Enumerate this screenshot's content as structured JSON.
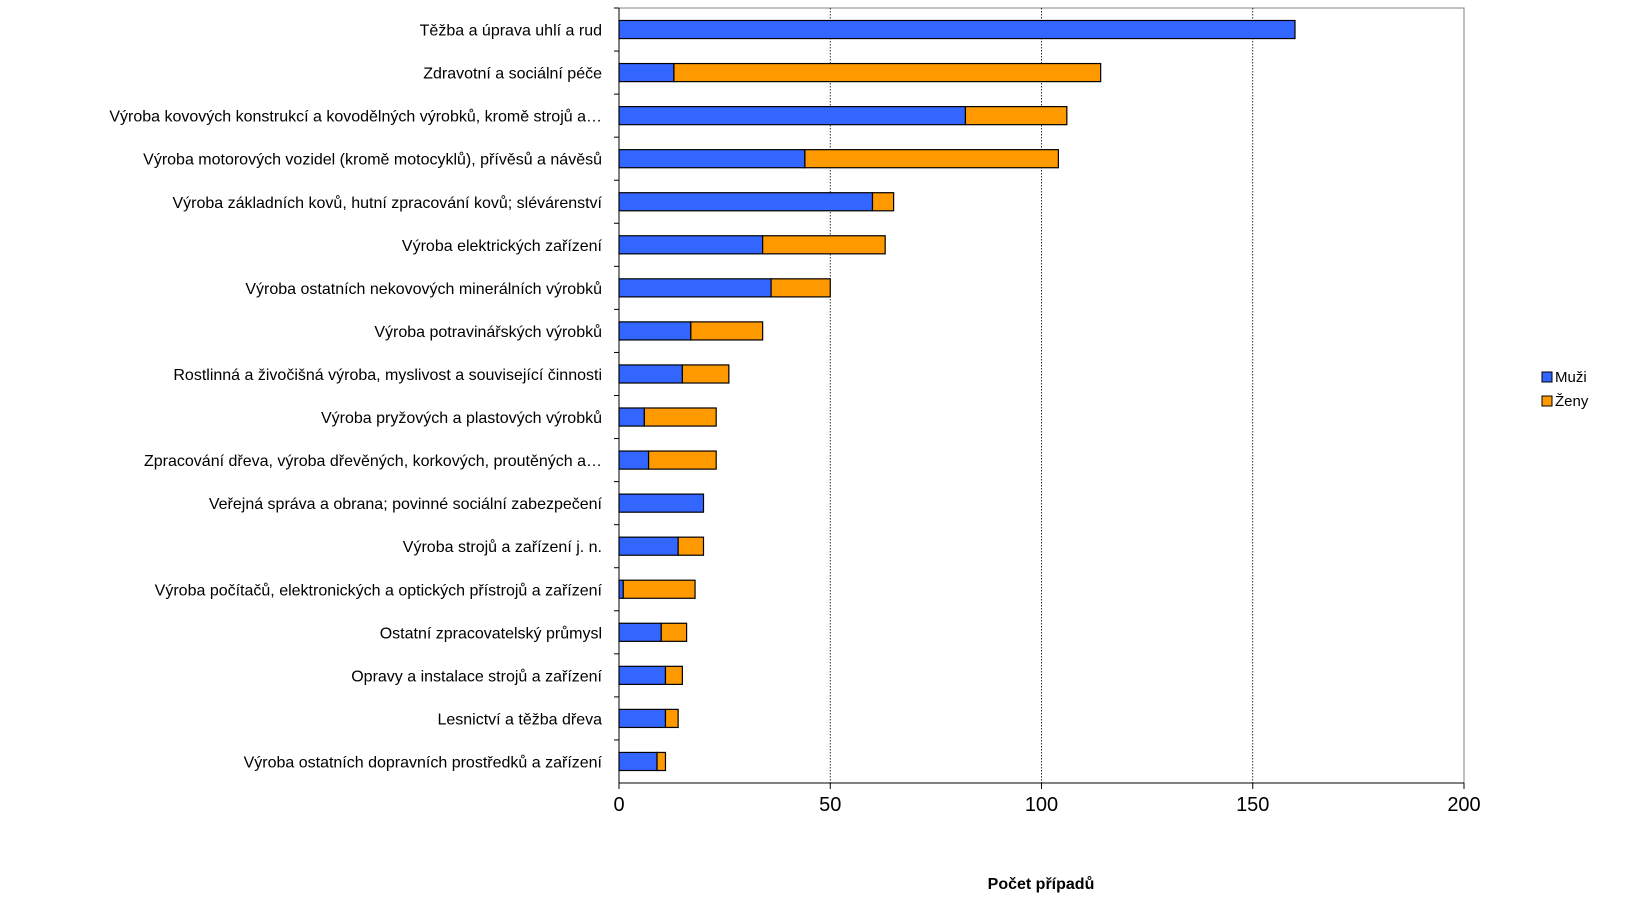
{
  "chart_data": {
    "type": "bar",
    "orientation": "horizontal",
    "stacked": true,
    "title": "",
    "xlabel": "Počet případů",
    "ylabel": "",
    "xlim": [
      0,
      200
    ],
    "x_ticks": [
      0,
      50,
      100,
      150,
      200
    ],
    "grid": true,
    "legend": "right",
    "categories": [
      "Těžba a úprava uhlí a rud",
      "Zdravotní a sociální péče",
      "Výroba kovových konstrukcí a kovodělných výrobků, kromě strojů a…",
      "Výroba motorových vozidel (kromě motocyklů), přívěsů a návěsů",
      "Výroba základních kovů, hutní zpracování kovů; slévárenství",
      "Výroba elektrických zařízení",
      "Výroba ostatních nekovových minerálních výrobků",
      "Výroba potravinářských výrobků",
      "Rostlinná a živočišná výroba, myslivost a související činnosti",
      "Výroba pryžových a plastových výrobků",
      "Zpracování dřeva, výroba dřevěných, korkových, proutěných a…",
      "Veřejná správa a obrana; povinné sociální zabezpečení",
      "Výroba strojů a zařízení j. n.",
      "Výroba počítačů, elektronických a optických přístrojů a zařízení",
      "Ostatní zpracovatelský průmysl",
      "Opravy a instalace strojů a zařízení",
      "Lesnictví a těžba dřeva",
      "Výroba ostatních dopravních prostředků a zařízení"
    ],
    "series": [
      {
        "name": "Muži",
        "color": "#3366FF",
        "values": [
          160,
          13,
          82,
          44,
          60,
          34,
          36,
          17,
          15,
          6,
          7,
          20,
          14,
          1,
          10,
          11,
          11,
          9
        ]
      },
      {
        "name": "Ženy",
        "color": "#FF9900",
        "values": [
          0,
          101,
          24,
          60,
          5,
          29,
          14,
          17,
          11,
          17,
          16,
          0,
          6,
          17,
          6,
          4,
          3,
          2
        ]
      }
    ]
  }
}
